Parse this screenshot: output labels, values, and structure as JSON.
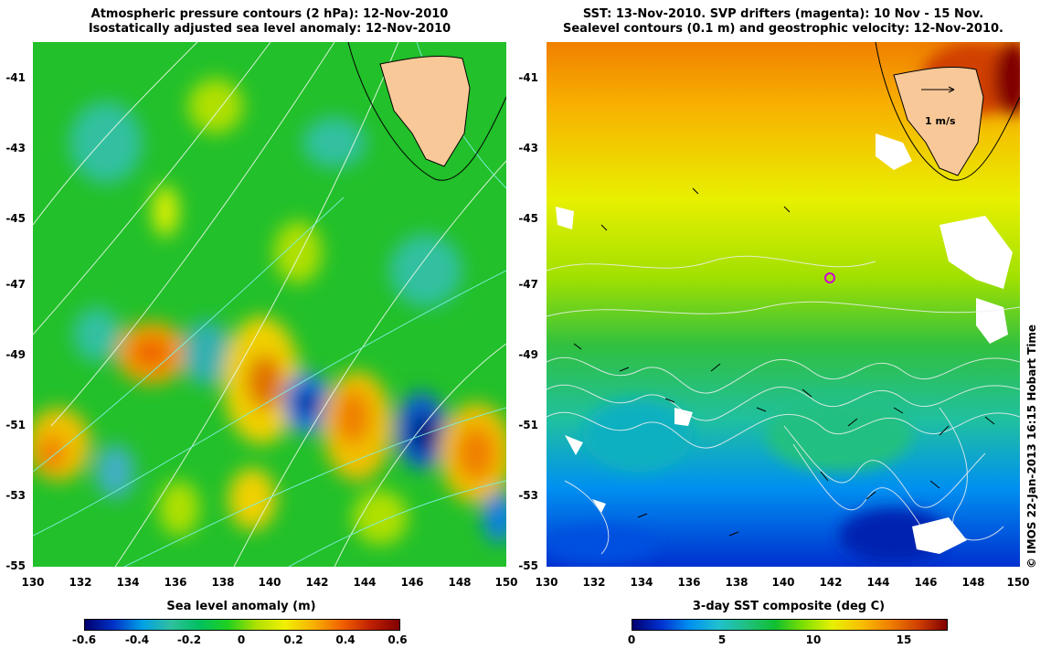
{
  "left_panel": {
    "title_line1": "Atmospheric pressure contours (2 hPa): 12-Nov-2010",
    "title_line2": "Isostatically adjusted sea level anomaly: 12-Nov-2010",
    "colorbar_title": "Sea level anomaly (m)",
    "colorbar_ticks": [
      "-0.6",
      "-0.4",
      "-0.2",
      "0",
      "0.2",
      "0.4",
      "0.6"
    ],
    "colorbar_stops": [
      "#00006e",
      "#0032c8",
      "#00a0e6",
      "#30c0a0",
      "#00c060",
      "#20d020",
      "#b0e000",
      "#f0f000",
      "#f8b000",
      "#f06000",
      "#c02000",
      "#800000"
    ]
  },
  "right_panel": {
    "title_line1": "SST: 13-Nov-2010. SVP drifters (magenta): 10 Nov - 15 Nov.",
    "title_line2": "Sealevel contours (0.1 m) and geostrophic velocity: 12-Nov-2010.",
    "colorbar_title": "3-day SST composite (deg C)",
    "colorbar_ticks": [
      "0",
      "5",
      "10",
      "15"
    ],
    "colorbar_stops": [
      "#00006e",
      "#0030d0",
      "#0090f0",
      "#20c0d0",
      "#20c080",
      "#10c030",
      "#80e000",
      "#e8f000",
      "#f8c000",
      "#f08000",
      "#d04000",
      "#800000"
    ],
    "scale_label": "1 m/s"
  },
  "axes": {
    "lat_ticks": [
      "-41",
      "-43",
      "-45",
      "-47",
      "-49",
      "-51",
      "-53",
      "-55"
    ],
    "lon_ticks": [
      "130",
      "132",
      "134",
      "136",
      "138",
      "140",
      "142",
      "144",
      "146",
      "148",
      "150"
    ]
  },
  "colors": {
    "land": "#f8c898",
    "ssh_background": "#22c02a",
    "sst_background": "#70d030"
  },
  "credit": "© IMOS 22-Jan-2013 16:15 Hobart Time"
}
